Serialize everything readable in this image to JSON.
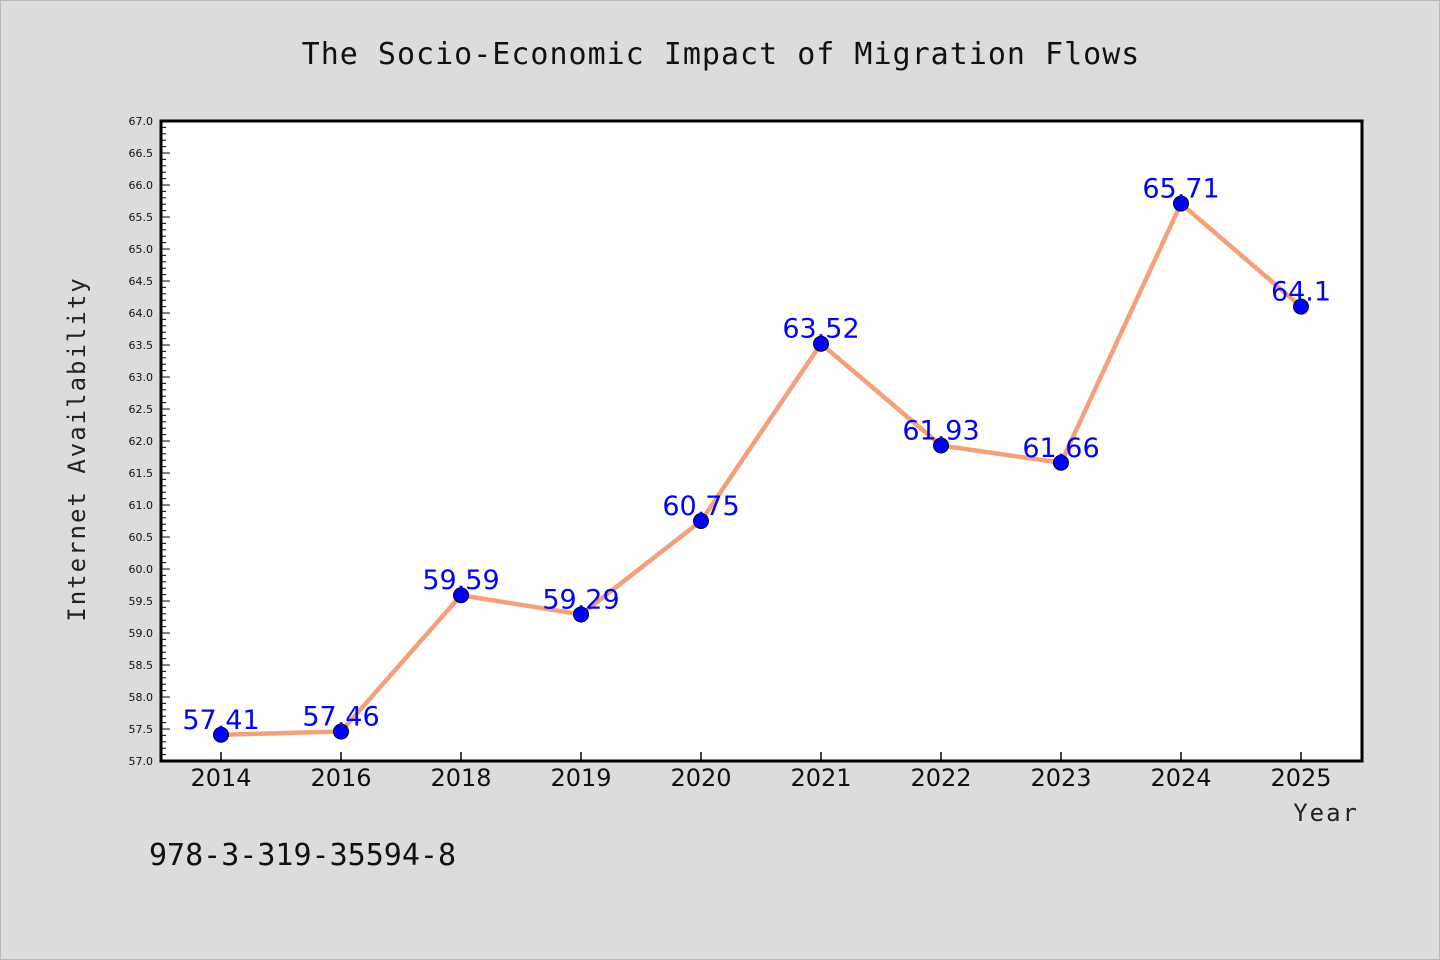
{
  "chart_data": {
    "type": "line",
    "title": "The Socio-Economic Impact of Migration Flows",
    "xlabel": "Year",
    "ylabel": "Internet Availability",
    "categories": [
      "2014",
      "2016",
      "2018",
      "2019",
      "2020",
      "2021",
      "2022",
      "2023",
      "2024",
      "2025"
    ],
    "series": [
      {
        "values": [
          57.41,
          57.46,
          59.59,
          59.29,
          60.75,
          63.52,
          61.93,
          61.66,
          65.71,
          64.1
        ]
      }
    ],
    "data_labels": [
      "57.41",
      "57.46",
      "59.59",
      "59.29",
      "60.75",
      "63.52",
      "61.93",
      "61.66",
      "65.71",
      "64.1"
    ],
    "ylim": [
      57.0,
      67.0
    ],
    "yticks": [
      "57.0",
      "57.5",
      "58.0",
      "58.5",
      "59.0",
      "59.5",
      "60.0",
      "60.5",
      "61.0",
      "61.5",
      "62.0",
      "62.5",
      "63.0",
      "63.5",
      "64.0",
      "64.5",
      "65.0",
      "65.5",
      "66.0",
      "66.5",
      "67.0"
    ],
    "grid": false,
    "legend": "none",
    "colors": {
      "line": "#f4a07a",
      "marker": "#0000ff",
      "label": "#0000ff",
      "plot_background": "#ffffff",
      "page_background": "#dcdcdc"
    }
  },
  "footer": {
    "identifier": "978-3-319-35594-8"
  }
}
